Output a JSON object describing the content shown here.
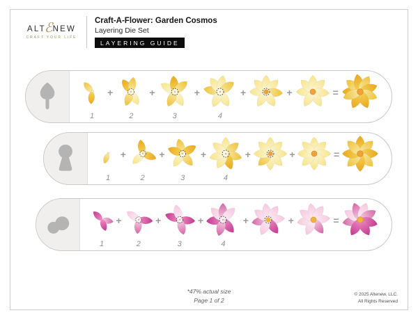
{
  "header": {
    "logo": {
      "word_start": "ALT",
      "ampersand": "ℰ",
      "word_end": "NEW",
      "tagline": "CRAFT YOUR LIFE"
    },
    "title": "Craft-A-Flower: Garden Cosmos",
    "subtitle": "Layering Die Set",
    "badge": "LAYERING GUIDE"
  },
  "separators": {
    "plus": "+",
    "equals": "="
  },
  "palettes": {
    "yellow": {
      "light": [
        "#fdf8e1",
        "#f7e488"
      ],
      "mid": [
        "#f9ecae",
        "#efc33a"
      ],
      "deep": [
        "#f7d75c",
        "#e9a81f"
      ]
    },
    "pink": {
      "light": [
        "#fdf0f7",
        "#f6c7df"
      ],
      "mid": [
        "#f9d9ea",
        "#d566a6"
      ],
      "deep": [
        "#f290c6",
        "#c23b8f"
      ]
    }
  },
  "center_colors": {
    "orange": "#f2a238",
    "yellow": "#f0b53e"
  },
  "rows": [
    {
      "die_shape": "bud-die",
      "palette": "yellow",
      "steps": [
        {
          "label": "1",
          "size": 40,
          "center": "small",
          "petals": [
            [
              -40,
              "mid"
            ],
            [
              185,
              "deep"
            ]
          ]
        },
        {
          "label": "2",
          "size": 48,
          "center": "dotted",
          "petals": [
            [
              -35,
              "deep"
            ],
            [
              10,
              "mid"
            ],
            [
              150,
              "light"
            ],
            [
              200,
              "mid"
            ]
          ]
        },
        {
          "label": "3",
          "size": 52,
          "center": "dotted",
          "petals": [
            [
              -60,
              "light"
            ],
            [
              -5,
              "deep"
            ],
            [
              50,
              "mid"
            ],
            [
              150,
              "light"
            ],
            [
              205,
              "mid"
            ]
          ]
        },
        {
          "label": "4",
          "size": 54,
          "center": "dotted",
          "petals": [
            [
              -80,
              "mid"
            ],
            [
              -35,
              "light"
            ],
            [
              10,
              "light"
            ],
            [
              55,
              "mid"
            ],
            [
              150,
              "light"
            ],
            [
              205,
              "light"
            ]
          ]
        },
        {
          "label": "",
          "size": 54,
          "center": "dotted-orange",
          "petals": [
            [
              -90,
              "light"
            ],
            [
              -45,
              "light"
            ],
            [
              0,
              "light"
            ],
            [
              45,
              "light"
            ],
            [
              95,
              "mid"
            ],
            [
              150,
              "light"
            ],
            [
              210,
              "light"
            ]
          ]
        },
        {
          "label": "",
          "size": 54,
          "center": "orange",
          "petals": [
            [
              -90,
              "light"
            ],
            [
              -45,
              "light"
            ],
            [
              0,
              "light"
            ],
            [
              45,
              "light"
            ],
            [
              95,
              "light"
            ],
            [
              150,
              "light"
            ],
            [
              210,
              "light"
            ]
          ]
        }
      ],
      "result": {
        "size": 58,
        "center": "orange",
        "petals": [
          [
            -90,
            "deep"
          ],
          [
            -50,
            "mid"
          ],
          [
            -10,
            "deep"
          ],
          [
            30,
            "mid"
          ],
          [
            70,
            "deep"
          ],
          [
            110,
            "mid"
          ],
          [
            155,
            "deep"
          ],
          [
            205,
            "deep"
          ],
          [
            250,
            "mid"
          ]
        ]
      }
    },
    {
      "die_shape": "keyhole-die",
      "palette": "yellow",
      "steps": [
        {
          "label": "1",
          "size": 34,
          "center": "small",
          "petals": [
            [
              200,
              "mid"
            ]
          ]
        },
        {
          "label": "2",
          "size": 46,
          "center": "dotted",
          "petals": [
            [
              -10,
              "deep"
            ],
            [
              110,
              "deep"
            ],
            [
              225,
              "light"
            ]
          ]
        },
        {
          "label": "3",
          "size": 50,
          "center": "dotted",
          "petals": [
            [
              -15,
              "mid"
            ],
            [
              60,
              "deep"
            ],
            [
              140,
              "mid"
            ],
            [
              215,
              "light"
            ],
            [
              290,
              "deep"
            ]
          ]
        },
        {
          "label": "4",
          "size": 54,
          "center": "dotted",
          "petals": [
            [
              0,
              "light"
            ],
            [
              50,
              "mid"
            ],
            [
              105,
              "mid"
            ],
            [
              160,
              "deep"
            ],
            [
              210,
              "light"
            ],
            [
              255,
              "light"
            ],
            [
              310,
              "light"
            ]
          ]
        },
        {
          "label": "",
          "size": 54,
          "center": "dotted-orange",
          "petals": [
            [
              0,
              "light"
            ],
            [
              45,
              "light"
            ],
            [
              90,
              "light"
            ],
            [
              135,
              "light"
            ],
            [
              180,
              "light"
            ],
            [
              225,
              "mid"
            ],
            [
              270,
              "light"
            ],
            [
              315,
              "light"
            ]
          ]
        },
        {
          "label": "",
          "size": 54,
          "center": "orange",
          "petals": [
            [
              0,
              "light"
            ],
            [
              45,
              "light"
            ],
            [
              90,
              "light"
            ],
            [
              135,
              "light"
            ],
            [
              180,
              "light"
            ],
            [
              225,
              "light"
            ],
            [
              270,
              "light"
            ],
            [
              315,
              "light"
            ]
          ]
        }
      ],
      "result": {
        "size": 58,
        "center": "orange",
        "petals": [
          [
            0,
            "deep"
          ],
          [
            45,
            "mid"
          ],
          [
            90,
            "deep"
          ],
          [
            135,
            "mid"
          ],
          [
            180,
            "deep"
          ],
          [
            225,
            "mid"
          ],
          [
            270,
            "deep"
          ],
          [
            315,
            "mid"
          ]
        ]
      }
    },
    {
      "die_shape": "peanut-die",
      "palette": "pink",
      "steps": [
        {
          "label": "1",
          "size": 38,
          "center": "none",
          "petals": [
            [
              -45,
              "deep"
            ],
            [
              100,
              "mid"
            ],
            [
              160,
              "deep"
            ]
          ]
        },
        {
          "label": "2",
          "size": 46,
          "center": "dotted",
          "petals": [
            [
              -55,
              "light"
            ],
            [
              95,
              "deep"
            ],
            [
              185,
              "mid"
            ]
          ]
        },
        {
          "label": "3",
          "size": 50,
          "center": "dotted",
          "petals": [
            [
              -70,
              "deep"
            ],
            [
              -15,
              "light"
            ],
            [
              95,
              "deep"
            ],
            [
              165,
              "mid"
            ]
          ]
        },
        {
          "label": "4",
          "size": 54,
          "center": "dotted",
          "petals": [
            [
              -95,
              "deep"
            ],
            [
              -45,
              "light"
            ],
            [
              0,
              "mid"
            ],
            [
              45,
              "light"
            ],
            [
              140,
              "deep"
            ],
            [
              195,
              "mid"
            ]
          ]
        },
        {
          "label": "",
          "size": 54,
          "center": "dotted-yellow",
          "petals": [
            [
              -100,
              "mid"
            ],
            [
              -55,
              "light"
            ],
            [
              -10,
              "light"
            ],
            [
              35,
              "light"
            ],
            [
              85,
              "light"
            ],
            [
              145,
              "deep"
            ],
            [
              205,
              "light"
            ]
          ]
        },
        {
          "label": "",
          "size": 54,
          "center": "yellow",
          "petals": [
            [
              -100,
              "light"
            ],
            [
              -55,
              "light"
            ],
            [
              -10,
              "light"
            ],
            [
              35,
              "light"
            ],
            [
              85,
              "light"
            ],
            [
              145,
              "mid"
            ],
            [
              205,
              "light"
            ]
          ]
        }
      ],
      "result": {
        "size": 58,
        "center": "yellow",
        "petals": [
          [
            -100,
            "mid"
          ],
          [
            -60,
            "light"
          ],
          [
            -20,
            "mid"
          ],
          [
            20,
            "light"
          ],
          [
            60,
            "mid"
          ],
          [
            105,
            "deep"
          ],
          [
            150,
            "deep"
          ],
          [
            210,
            "deep"
          ]
        ]
      }
    }
  ],
  "footer": {
    "scale_note": "*47% actual size",
    "page": "Page 1 of 2",
    "copyright_line1": "© 2025 Altenew, LLC.",
    "copyright_line2": "All Rights Reserved"
  }
}
